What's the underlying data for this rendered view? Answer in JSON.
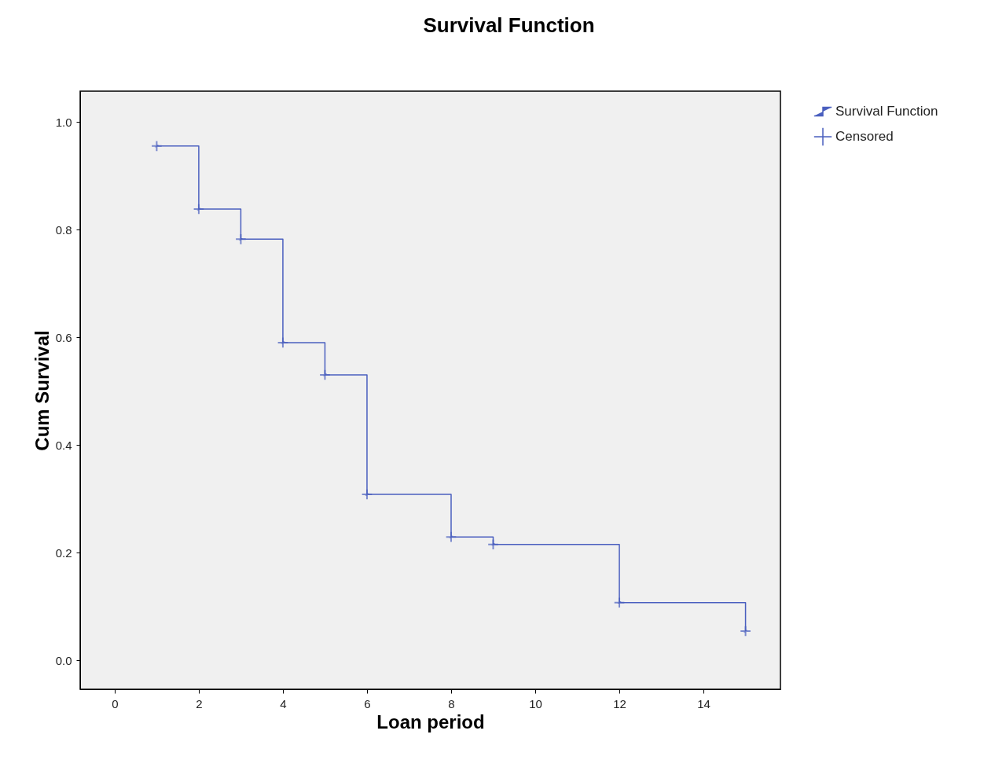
{
  "chart_data": {
    "type": "step",
    "title": "Survival Function",
    "xlabel": "Loan period",
    "ylabel": "Cum Survival",
    "xlim": [
      -0.82,
      15.83
    ],
    "xticks": [
      0,
      2,
      4,
      6,
      8,
      10,
      12,
      14
    ],
    "ylim": [
      -0.054,
      1.057
    ],
    "yticks": [
      {
        "value": 0,
        "label": "0.0"
      },
      0.2,
      0.4,
      0.6,
      0.8,
      {
        "value": 1,
        "label": "1.0"
      }
    ],
    "grid": false,
    "legend": "top right",
    "series": [
      {
        "name": "Survival Function",
        "marker": "none",
        "color": "#4a5fbf",
        "x": [
          1,
          2,
          3,
          4,
          5,
          6,
          8,
          9,
          12,
          15
        ],
        "values": [
          0.955,
          0.838,
          0.782,
          0.59,
          0.53,
          0.308,
          0.229,
          0.215,
          0.107,
          0.054
        ]
      },
      {
        "name": "Censored",
        "type": "scatter",
        "marker": "cross",
        "color": "#4a5fbf",
        "x": [
          1,
          2,
          3,
          4,
          5,
          6,
          8,
          9,
          12,
          15
        ],
        "values": [
          0.955,
          0.838,
          0.782,
          0.59,
          0.53,
          0.308,
          0.229,
          0.215,
          0.107,
          0.054
        ]
      }
    ]
  }
}
